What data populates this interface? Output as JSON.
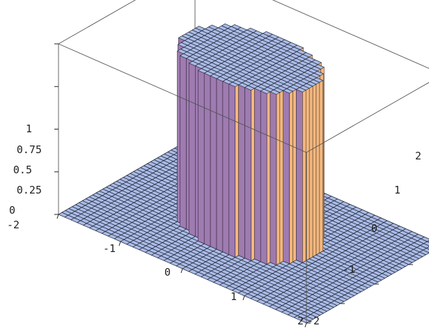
{
  "chart_data": {
    "type": "surface3d",
    "title": "",
    "function": "z = 1 if x^2 + y^2 < 1, else 0",
    "x_range": [
      -2,
      2
    ],
    "y_range": [
      -2,
      2
    ],
    "z_range": [
      0,
      1
    ],
    "x_ticks": [
      "-2",
      "-1",
      "0",
      "1",
      "2"
    ],
    "y_ticks": [
      "-2",
      "-1",
      "0",
      "1",
      "2"
    ],
    "z_ticks": [
      "0",
      "0.25",
      "0.5",
      "0.75",
      "1"
    ],
    "mesh_divisions": 40,
    "colors": {
      "surface": "#aabbe6",
      "mesh_line": "#1c2233",
      "wall_shadow": "#9e7bb0",
      "wall_lit": "#f2b77e",
      "box_line": "#555555"
    }
  }
}
